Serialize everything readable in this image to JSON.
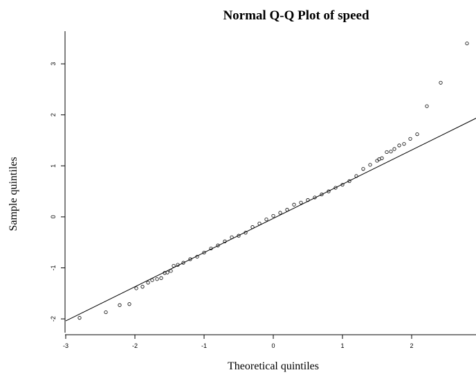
{
  "chart_data": {
    "type": "scatter",
    "title": "Normal Q-Q Plot of speed",
    "x_label": "Theoretical quintiles",
    "y_label": "Sample quintiles",
    "x": [
      -2.8,
      -2.42,
      -2.22,
      -2.08,
      -1.98,
      -1.89,
      -1.81,
      -1.75,
      -1.68,
      -1.62,
      -1.57,
      -1.53,
      -1.48,
      -1.44,
      -1.38,
      -1.3,
      -1.2,
      -1.1,
      -1.0,
      -0.9,
      -0.8,
      -0.7,
      -0.6,
      -0.5,
      -0.4,
      -0.3,
      -0.2,
      -0.1,
      0,
      0.1,
      0.2,
      0.3,
      0.4,
      0.5,
      0.6,
      0.7,
      0.8,
      0.9,
      1.0,
      1.1,
      1.2,
      1.3,
      1.4,
      1.5,
      1.53,
      1.57,
      1.64,
      1.7,
      1.75,
      1.82,
      1.89,
      1.98,
      2.08,
      2.22,
      2.42,
      2.8
    ],
    "values": [
      -1.98,
      -1.87,
      -1.73,
      -1.71,
      -1.4,
      -1.37,
      -1.29,
      -1.24,
      -1.22,
      -1.2,
      -1.1,
      -1.09,
      -1.06,
      -0.96,
      -0.94,
      -0.9,
      -0.83,
      -0.78,
      -0.7,
      -0.62,
      -0.56,
      -0.48,
      -0.4,
      -0.37,
      -0.31,
      -0.2,
      -0.13,
      -0.05,
      0.02,
      0.08,
      0.14,
      0.24,
      0.28,
      0.33,
      0.38,
      0.44,
      0.5,
      0.57,
      0.63,
      0.7,
      0.8,
      0.94,
      1.02,
      1.1,
      1.13,
      1.15,
      1.27,
      1.28,
      1.33,
      1.4,
      1.43,
      1.53,
      1.62,
      2.17,
      2.63,
      3.4
    ],
    "color": "#000000",
    "reference_line": {
      "intercept": -0.03,
      "slope": 0.67
    },
    "xlim": [
      -3,
      2.93
    ],
    "ylim": [
      -2.27,
      3.64
    ],
    "xticks": [
      -3,
      -2,
      -1,
      0,
      1,
      2
    ],
    "yticks": [
      -2,
      -1,
      0,
      1,
      2,
      3
    ]
  }
}
